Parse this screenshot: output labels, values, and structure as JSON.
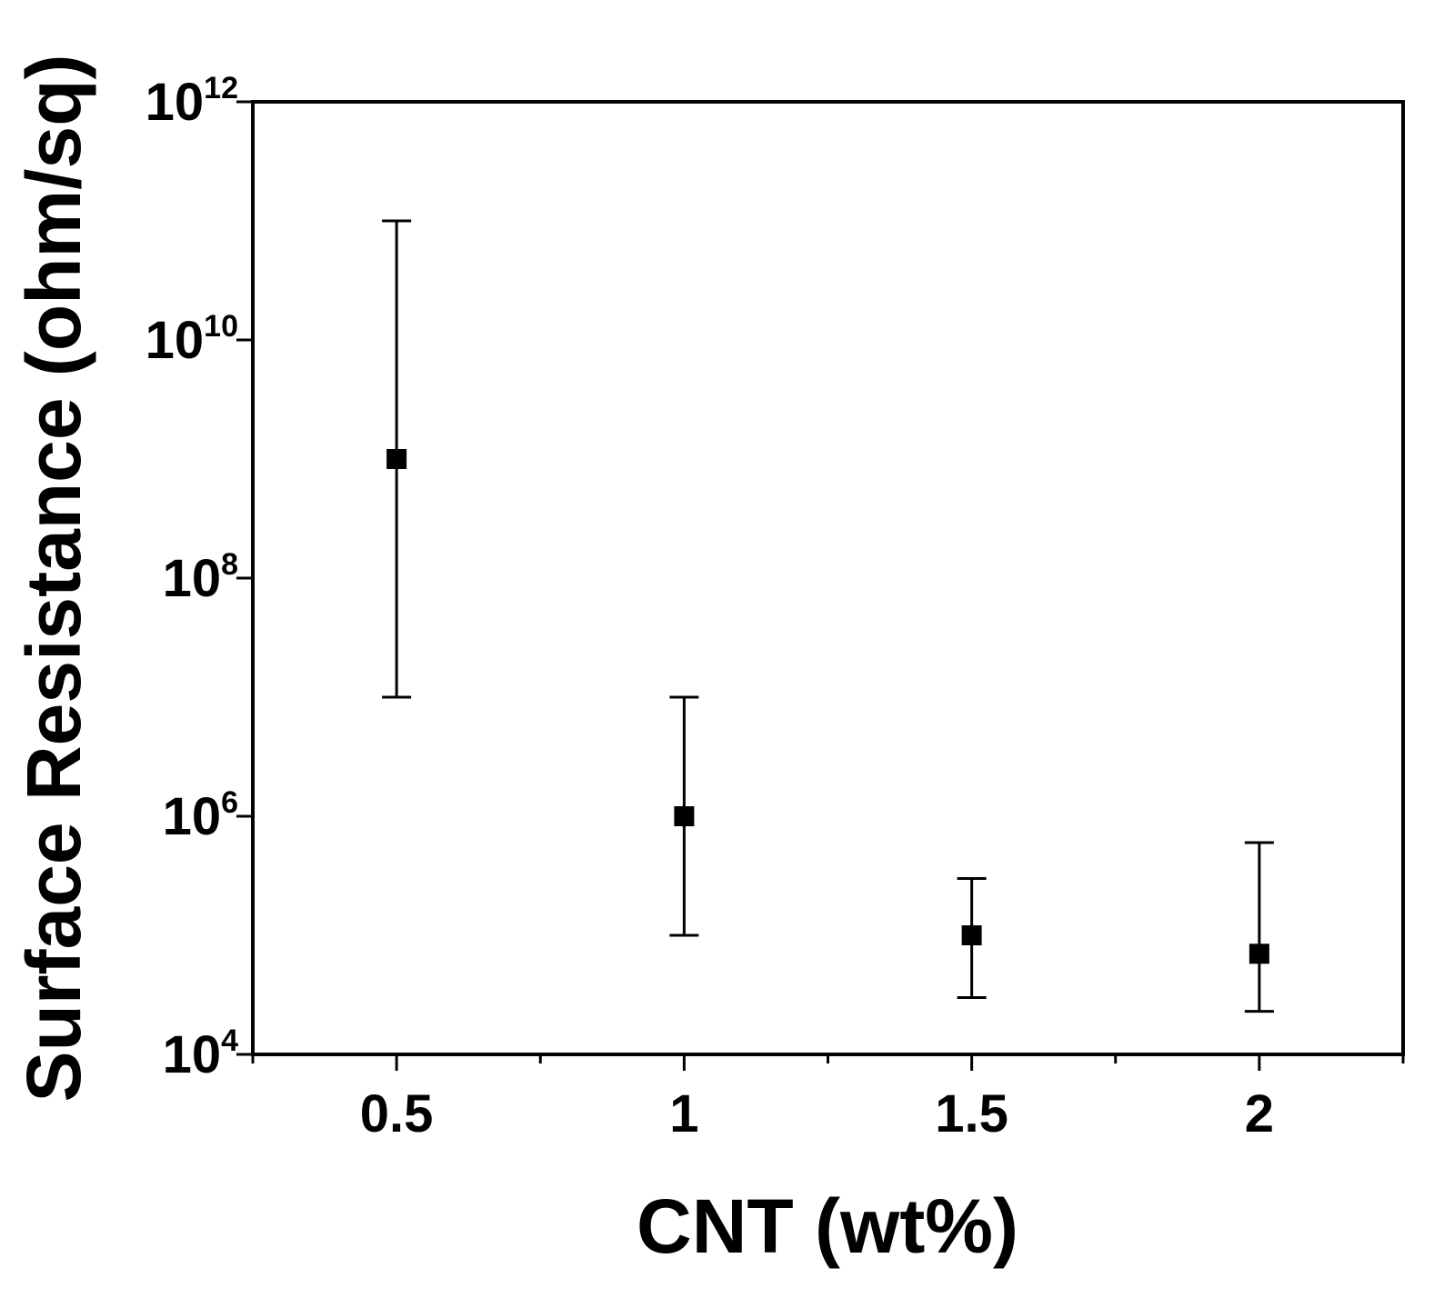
{
  "chart_data": {
    "type": "scatter",
    "title": "",
    "xlabel": "CNT (wt%)",
    "ylabel": "Surface Resistance (ohm/sq)",
    "xlim": [
      0.25,
      2.25
    ],
    "ylim": [
      10000,
      1000000000000
    ],
    "yscale": "log",
    "grid": false,
    "legend": "none",
    "x_ticks": [
      {
        "value": 0.5,
        "label": "0.5"
      },
      {
        "value": 1,
        "label": "1"
      },
      {
        "value": 1.5,
        "label": "1.5"
      },
      {
        "value": 2,
        "label": "2"
      }
    ],
    "x_minor_ticks": [
      0.25,
      0.75,
      1.25,
      1.75,
      2.25
    ],
    "y_ticks": [
      {
        "value": 10000,
        "base": "10",
        "exp": "4"
      },
      {
        "value": 1000000,
        "base": "10",
        "exp": "6"
      },
      {
        "value": 100000000,
        "base": "10",
        "exp": "8"
      },
      {
        "value": 10000000000,
        "base": "10",
        "exp": "10"
      },
      {
        "value": 1000000000000,
        "base": "10",
        "exp": "12"
      }
    ],
    "series": [
      {
        "marker": "square",
        "color": "#000000",
        "points": [
          {
            "x": 0.5,
            "y": 1000000000,
            "y_low": 10000000,
            "y_high": 100000000000
          },
          {
            "x": 1,
            "y": 1000000,
            "y_low": 100000,
            "y_high": 10000000
          },
          {
            "x": 1.5,
            "y": 100000,
            "y_low": 30000,
            "y_high": 300000
          },
          {
            "x": 2,
            "y": 70000,
            "y_low": 23000,
            "y_high": 600000
          }
        ]
      }
    ]
  }
}
